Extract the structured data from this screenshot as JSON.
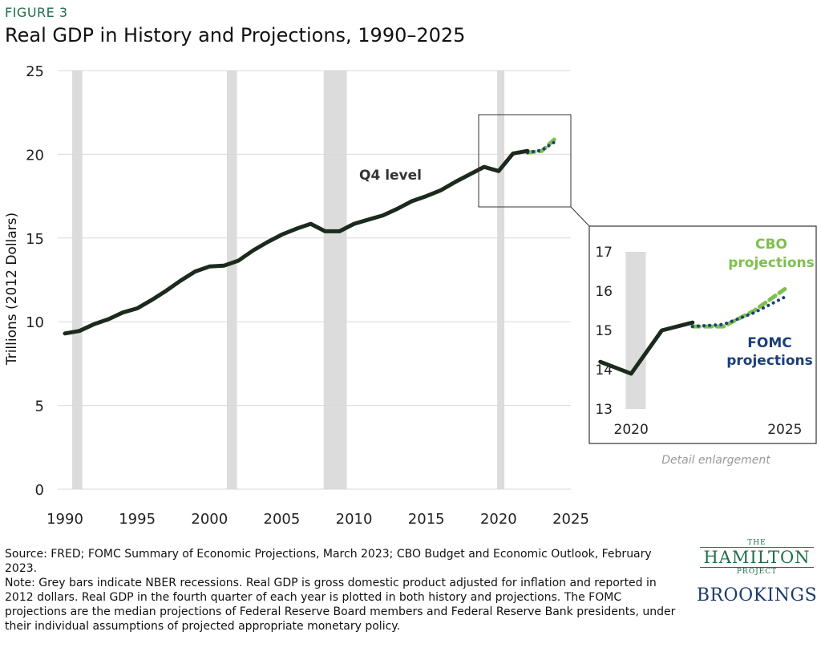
{
  "figure_label": "FIGURE 3",
  "title": "Real GDP in History and Projections, 1990–2025",
  "colors": {
    "history": "#1c2a1d",
    "cbo": "#7fbf4d",
    "fomc": "#1b3f7a",
    "recession": "#dcdcdc",
    "title_green": "#1f6f4a"
  },
  "chart_data": [
    {
      "type": "line",
      "ylabel": "Trillions (2012 Dollars)",
      "xlabel": "",
      "ylim": [
        0,
        25
      ],
      "xlim": [
        1989.5,
        2025
      ],
      "y_ticks": [
        "0",
        "5",
        "10",
        "15",
        "20",
        "25"
      ],
      "x_ticks": [
        "1990",
        "1995",
        "2000",
        "2005",
        "2010",
        "2015",
        "2020",
        "2025"
      ],
      "grid": true,
      "annotation": "Q4 level",
      "recessions": [
        [
          1990.5,
          1991.2
        ],
        [
          2001.2,
          2001.9
        ],
        [
          2007.9,
          2009.5
        ],
        [
          2019.9,
          2020.4
        ]
      ],
      "series": [
        {
          "name": "",
          "x": [
            1990,
            1991,
            1992,
            1993,
            1994,
            1995,
            1996,
            1997,
            1998,
            1999,
            2000,
            2001,
            2002,
            2003,
            2004,
            2005,
            2006,
            2007,
            2008,
            2009,
            2010,
            2011,
            2012,
            2013,
            2014,
            2015,
            2016,
            2017,
            2018,
            2019,
            2020,
            2021,
            2022
          ],
          "y": [
            9.3,
            9.45,
            9.85,
            10.15,
            10.55,
            10.8,
            11.3,
            11.85,
            12.45,
            13.0,
            13.3,
            13.35,
            13.65,
            14.25,
            14.75,
            15.2,
            15.55,
            15.85,
            15.4,
            15.4,
            15.85,
            16.1,
            16.35,
            16.75,
            17.2,
            17.5,
            17.85,
            18.35,
            18.8,
            19.25,
            19.0,
            20.05,
            20.2
          ]
        },
        {
          "name": "CBO projections",
          "x": [
            2022,
            2023,
            2024
          ],
          "y": [
            20.1,
            20.2,
            21.0
          ]
        },
        {
          "name": "FOMC projections",
          "x": [
            2022,
            2023,
            2024
          ],
          "y": [
            20.1,
            20.25,
            20.8
          ]
        }
      ]
    },
    {
      "type": "line",
      "title": "",
      "caption": "Detail enlargement",
      "ylim": [
        13,
        17
      ],
      "xlim": [
        2019.5,
        2025.5
      ],
      "y_ticks": [
        "13",
        "14",
        "15",
        "16",
        "17"
      ],
      "x_ticks": [
        "2020",
        "2025"
      ],
      "recessions": [
        [
          2019.9,
          2020.4
        ]
      ],
      "series": [
        {
          "name": "",
          "x": [
            2019,
            2020,
            2021,
            2022
          ],
          "y": [
            14.2,
            13.9,
            15.0,
            15.2
          ]
        },
        {
          "name": "CBO projections",
          "x": [
            2022,
            2023,
            2024,
            2025
          ],
          "y": [
            15.1,
            15.1,
            15.5,
            16.05
          ]
        },
        {
          "name": "FOMC projections",
          "x": [
            2022,
            2023,
            2024,
            2025
          ],
          "y": [
            15.1,
            15.15,
            15.45,
            15.85
          ]
        }
      ],
      "labels": {
        "cbo_line1": "CBO",
        "cbo_line2": "projections",
        "fomc_line1": "FOMC",
        "fomc_line2": "projections"
      }
    }
  ],
  "footer": {
    "source": "Source: FRED; FOMC Summary of Economic Projections, March 2023; CBO Budget and Economic Outlook, February 2023.",
    "note": "Note: Grey bars indicate NBER recessions. Real GDP is gross domestic product adjusted for inflation and reported in 2012 dollars. Real GDP in the fourth quarter of each year is plotted in both history and projections. The FOMC projections are the median projections of Federal Reserve Board members and Federal Reserve Bank presidents, under their individual assumptions of projected appropriate monetary policy."
  },
  "logos": {
    "hamilton_the": "THE",
    "hamilton_name": "HAMILTON",
    "hamilton_project": "PROJECT",
    "brookings": "BROOKINGS"
  }
}
